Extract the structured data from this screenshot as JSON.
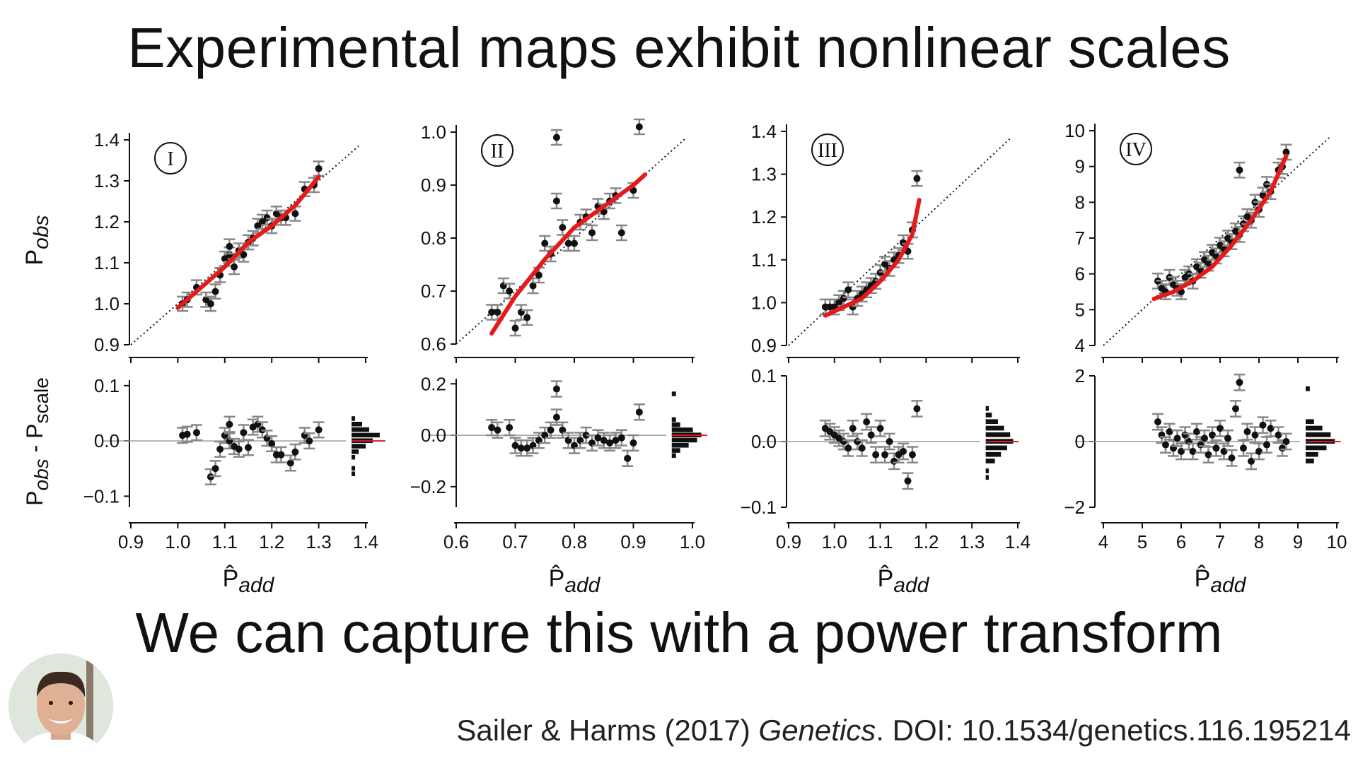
{
  "slide": {
    "title": "Experimental maps exhibit nonlinear scales",
    "subtitle": "We can capture this with a power transform",
    "citation_authors": "Sailer & Harms (2017) ",
    "citation_journal": "Genetics",
    "citation_rest": ". DOI: 10.1534/genetics.116.195214",
    "avatar_icon": "presenter-photo"
  },
  "colors": {
    "fit": "#e41a1c",
    "points": "#111111",
    "errorbar": "#888888",
    "zero_line": "#9a9a9a"
  },
  "chart_data": [
    {
      "type": "scatter",
      "panel_label": "I",
      "ylabel_top": "P_obs",
      "ylabel_bottom": "P_obs - P_scale",
      "xlabel": "P̂_add",
      "xlim": [
        0.9,
        1.4
      ],
      "xticks": [
        "0.9",
        "1.0",
        "1.1",
        "1.2",
        "1.3",
        "1.4"
      ],
      "top_ylim": [
        0.9,
        1.4
      ],
      "top_yticks": [
        "0.9",
        "1.0",
        "1.1",
        "1.2",
        "1.3",
        "1.4"
      ],
      "bottom_ylim": [
        -0.12,
        0.11
      ],
      "bottom_yticks": [
        "-0.1",
        "0.0",
        "0.1"
      ],
      "bottom_ytick_values": [
        -0.1,
        0.0,
        0.1
      ],
      "identity_line": true,
      "points": [
        [
          1.01,
          1.0
        ],
        [
          1.02,
          1.01
        ],
        [
          1.04,
          1.04
        ],
        [
          1.06,
          1.01
        ],
        [
          1.07,
          1.0
        ],
        [
          1.08,
          1.03
        ],
        [
          1.09,
          1.07
        ],
        [
          1.1,
          1.11
        ],
        [
          1.11,
          1.12
        ],
        [
          1.11,
          1.14
        ],
        [
          1.12,
          1.09
        ],
        [
          1.13,
          1.13
        ],
        [
          1.14,
          1.12
        ],
        [
          1.15,
          1.15
        ],
        [
          1.16,
          1.16
        ],
        [
          1.17,
          1.19
        ],
        [
          1.18,
          1.2
        ],
        [
          1.19,
          1.21
        ],
        [
          1.2,
          1.19
        ],
        [
          1.21,
          1.22
        ],
        [
          1.22,
          1.21
        ],
        [
          1.23,
          1.21
        ],
        [
          1.25,
          1.22
        ],
        [
          1.27,
          1.28
        ],
        [
          1.29,
          1.29
        ],
        [
          1.3,
          1.33
        ]
      ],
      "fit": [
        [
          1.0,
          0.99
        ],
        [
          1.05,
          1.04
        ],
        [
          1.1,
          1.09
        ],
        [
          1.15,
          1.15
        ],
        [
          1.2,
          1.19
        ],
        [
          1.25,
          1.24
        ],
        [
          1.3,
          1.31
        ]
      ],
      "residuals": [
        [
          1.01,
          0.01
        ],
        [
          1.02,
          0.012
        ],
        [
          1.04,
          0.015
        ],
        [
          1.07,
          -0.065
        ],
        [
          1.08,
          -0.05
        ],
        [
          1.09,
          -0.015
        ],
        [
          1.1,
          0.01
        ],
        [
          1.11,
          0.03
        ],
        [
          1.11,
          0.0
        ],
        [
          1.12,
          -0.01
        ],
        [
          1.13,
          -0.015
        ],
        [
          1.14,
          0.015
        ],
        [
          1.15,
          -0.012
        ],
        [
          1.16,
          0.025
        ],
        [
          1.17,
          0.03
        ],
        [
          1.18,
          0.02
        ],
        [
          1.19,
          0.005
        ],
        [
          1.2,
          -0.005
        ],
        [
          1.21,
          -0.025
        ],
        [
          1.22,
          -0.025
        ],
        [
          1.24,
          -0.04
        ],
        [
          1.25,
          -0.02
        ],
        [
          1.27,
          0.01
        ],
        [
          1.28,
          0.0
        ],
        [
          1.3,
          0.02
        ]
      ],
      "histogram": [
        [
          -0.06,
          1
        ],
        [
          -0.05,
          1
        ],
        [
          -0.03,
          1
        ],
        [
          -0.02,
          2
        ],
        [
          -0.01,
          4
        ],
        [
          0.0,
          6
        ],
        [
          0.01,
          8
        ],
        [
          0.02,
          5
        ],
        [
          0.03,
          3
        ],
        [
          0.04,
          1
        ]
      ],
      "hist_position_x": 1.37,
      "hist_width": 0.06
    },
    {
      "type": "scatter",
      "panel_label": "II",
      "xlabel": "P̂_add",
      "xlim": [
        0.6,
        1.0
      ],
      "xticks": [
        "0.6",
        "0.7",
        "0.8",
        "0.9",
        "1.0"
      ],
      "top_ylim": [
        0.6,
        1.0
      ],
      "top_yticks": [
        "0.6",
        "0.7",
        "0.8",
        "0.9",
        "1.0"
      ],
      "bottom_ylim": [
        -0.28,
        0.22
      ],
      "bottom_yticks": [
        "-0.2",
        "0.0",
        "0.2"
      ],
      "bottom_ytick_values": [
        -0.2,
        0.0,
        0.2
      ],
      "identity_line": true,
      "points": [
        [
          0.66,
          0.66
        ],
        [
          0.67,
          0.66
        ],
        [
          0.68,
          0.71
        ],
        [
          0.69,
          0.7
        ],
        [
          0.7,
          0.63
        ],
        [
          0.71,
          0.66
        ],
        [
          0.72,
          0.65
        ],
        [
          0.73,
          0.71
        ],
        [
          0.74,
          0.73
        ],
        [
          0.75,
          0.79
        ],
        [
          0.76,
          0.77
        ],
        [
          0.77,
          0.99
        ],
        [
          0.77,
          0.87
        ],
        [
          0.78,
          0.82
        ],
        [
          0.79,
          0.79
        ],
        [
          0.8,
          0.79
        ],
        [
          0.81,
          0.83
        ],
        [
          0.82,
          0.84
        ],
        [
          0.83,
          0.81
        ],
        [
          0.84,
          0.86
        ],
        [
          0.85,
          0.85
        ],
        [
          0.86,
          0.87
        ],
        [
          0.87,
          0.88
        ],
        [
          0.88,
          0.81
        ],
        [
          0.9,
          0.89
        ],
        [
          0.91,
          1.01
        ]
      ],
      "fit": [
        [
          0.66,
          0.62
        ],
        [
          0.7,
          0.69
        ],
        [
          0.75,
          0.76
        ],
        [
          0.8,
          0.82
        ],
        [
          0.85,
          0.86
        ],
        [
          0.9,
          0.9
        ],
        [
          0.92,
          0.92
        ]
      ],
      "residuals": [
        [
          0.66,
          0.03
        ],
        [
          0.67,
          0.02
        ],
        [
          0.69,
          0.03
        ],
        [
          0.7,
          -0.04
        ],
        [
          0.71,
          -0.05
        ],
        [
          0.72,
          -0.05
        ],
        [
          0.73,
          -0.04
        ],
        [
          0.74,
          -0.02
        ],
        [
          0.75,
          0.0
        ],
        [
          0.76,
          0.02
        ],
        [
          0.77,
          0.18
        ],
        [
          0.77,
          0.07
        ],
        [
          0.78,
          0.02
        ],
        [
          0.79,
          -0.02
        ],
        [
          0.8,
          -0.04
        ],
        [
          0.81,
          -0.02
        ],
        [
          0.82,
          0.0
        ],
        [
          0.83,
          -0.03
        ],
        [
          0.84,
          -0.01
        ],
        [
          0.85,
          -0.02
        ],
        [
          0.86,
          -0.03
        ],
        [
          0.87,
          -0.02
        ],
        [
          0.88,
          -0.01
        ],
        [
          0.89,
          -0.09
        ],
        [
          0.9,
          -0.03
        ],
        [
          0.91,
          0.09
        ]
      ],
      "histogram": [
        [
          -0.08,
          1
        ],
        [
          -0.06,
          2
        ],
        [
          -0.04,
          4
        ],
        [
          -0.02,
          6
        ],
        [
          0.0,
          7
        ],
        [
          0.02,
          5
        ],
        [
          0.04,
          2
        ],
        [
          0.06,
          1
        ],
        [
          0.16,
          1
        ]
      ],
      "hist_position_x": 0.965,
      "hist_width": 0.05
    },
    {
      "type": "scatter",
      "panel_label": "III",
      "xlabel": "P̂_add",
      "xlim": [
        0.9,
        1.4
      ],
      "xticks": [
        "0.9",
        "1.0",
        "1.1",
        "1.2",
        "1.3",
        "1.4"
      ],
      "top_ylim": [
        0.9,
        1.4
      ],
      "top_yticks": [
        "0.9",
        "1.0",
        "1.1",
        "1.2",
        "1.3",
        "1.4"
      ],
      "bottom_ylim": [
        -0.1,
        0.1
      ],
      "bottom_yticks": [
        "-0.1",
        "0.0",
        "0.1"
      ],
      "bottom_ytick_values": [
        -0.1,
        0.0,
        0.1
      ],
      "identity_line": true,
      "points": [
        [
          0.98,
          0.99
        ],
        [
          0.99,
          0.99
        ],
        [
          1.0,
          0.99
        ],
        [
          1.01,
          1.0
        ],
        [
          1.02,
          1.01
        ],
        [
          1.03,
          1.03
        ],
        [
          1.04,
          0.99
        ],
        [
          1.05,
          1.01
        ],
        [
          1.06,
          1.02
        ],
        [
          1.07,
          1.03
        ],
        [
          1.08,
          1.04
        ],
        [
          1.09,
          1.05
        ],
        [
          1.1,
          1.07
        ],
        [
          1.11,
          1.09
        ],
        [
          1.12,
          1.08
        ],
        [
          1.13,
          1.1
        ],
        [
          1.14,
          1.11
        ],
        [
          1.15,
          1.14
        ],
        [
          1.16,
          1.12
        ],
        [
          1.17,
          1.17
        ],
        [
          1.18,
          1.29
        ]
      ],
      "fit": [
        [
          0.98,
          0.97
        ],
        [
          1.02,
          0.99
        ],
        [
          1.06,
          1.01
        ],
        [
          1.1,
          1.05
        ],
        [
          1.14,
          1.1
        ],
        [
          1.17,
          1.16
        ],
        [
          1.185,
          1.24
        ]
      ],
      "residuals": [
        [
          0.98,
          0.02
        ],
        [
          0.99,
          0.015
        ],
        [
          1.0,
          0.01
        ],
        [
          1.01,
          0.005
        ],
        [
          1.02,
          0.0
        ],
        [
          1.03,
          -0.01
        ],
        [
          1.04,
          0.02
        ],
        [
          1.05,
          0.0
        ],
        [
          1.06,
          -0.01
        ],
        [
          1.07,
          0.03
        ],
        [
          1.08,
          0.01
        ],
        [
          1.09,
          -0.02
        ],
        [
          1.1,
          0.02
        ],
        [
          1.11,
          -0.02
        ],
        [
          1.12,
          0.0
        ],
        [
          1.13,
          -0.03
        ],
        [
          1.14,
          -0.02
        ],
        [
          1.15,
          -0.015
        ],
        [
          1.16,
          -0.06
        ],
        [
          1.17,
          -0.02
        ],
        [
          1.18,
          0.05
        ]
      ],
      "histogram": [
        [
          -0.055,
          1
        ],
        [
          -0.045,
          1
        ],
        [
          -0.03,
          3
        ],
        [
          -0.02,
          5
        ],
        [
          -0.01,
          7
        ],
        [
          0.0,
          9
        ],
        [
          0.01,
          8
        ],
        [
          0.02,
          6
        ],
        [
          0.03,
          4
        ],
        [
          0.04,
          2
        ],
        [
          0.05,
          1
        ]
      ],
      "hist_position_x": 1.33,
      "hist_width": 0.06
    },
    {
      "type": "scatter",
      "panel_label": "IV",
      "xlabel": "P̂_add",
      "xlim": [
        4,
        10
      ],
      "xticks": [
        "4",
        "5",
        "6",
        "7",
        "8",
        "9",
        "10"
      ],
      "top_ylim": [
        4,
        10
      ],
      "top_yticks": [
        "4",
        "5",
        "6",
        "7",
        "8",
        "9",
        "10"
      ],
      "bottom_ylim": [
        -2,
        2
      ],
      "bottom_yticks": [
        "-2",
        "0",
        "2"
      ],
      "bottom_ytick_values": [
        -2,
        0,
        2
      ],
      "identity_line": true,
      "points": [
        [
          5.4,
          5.8
        ],
        [
          5.5,
          5.6
        ],
        [
          5.6,
          5.5
        ],
        [
          5.7,
          5.9
        ],
        [
          5.8,
          5.7
        ],
        [
          5.9,
          5.6
        ],
        [
          6.0,
          5.5
        ],
        [
          6.1,
          5.9
        ],
        [
          6.2,
          6.0
        ],
        [
          6.3,
          5.8
        ],
        [
          6.4,
          6.2
        ],
        [
          6.5,
          6.1
        ],
        [
          6.6,
          6.4
        ],
        [
          6.7,
          6.3
        ],
        [
          6.8,
          6.6
        ],
        [
          6.9,
          6.5
        ],
        [
          7.0,
          6.8
        ],
        [
          7.1,
          6.7
        ],
        [
          7.2,
          7.0
        ],
        [
          7.3,
          6.9
        ],
        [
          7.4,
          7.2
        ],
        [
          7.5,
          8.9
        ],
        [
          7.5,
          7.1
        ],
        [
          7.6,
          7.4
        ],
        [
          7.7,
          7.6
        ],
        [
          7.8,
          7.5
        ],
        [
          7.9,
          8.0
        ],
        [
          8.0,
          7.8
        ],
        [
          8.1,
          8.2
        ],
        [
          8.2,
          8.5
        ],
        [
          8.3,
          8.3
        ],
        [
          8.5,
          8.9
        ],
        [
          8.6,
          9.0
        ],
        [
          8.7,
          9.4
        ]
      ],
      "fit": [
        [
          5.3,
          5.3
        ],
        [
          5.8,
          5.5
        ],
        [
          6.3,
          5.8
        ],
        [
          6.8,
          6.2
        ],
        [
          7.3,
          6.8
        ],
        [
          7.8,
          7.5
        ],
        [
          8.3,
          8.3
        ],
        [
          8.7,
          9.3
        ]
      ],
      "residuals": [
        [
          5.4,
          0.6
        ],
        [
          5.5,
          0.2
        ],
        [
          5.6,
          -0.1
        ],
        [
          5.7,
          0.3
        ],
        [
          5.8,
          -0.2
        ],
        [
          5.9,
          0.1
        ],
        [
          6.0,
          -0.3
        ],
        [
          6.1,
          0.2
        ],
        [
          6.2,
          0.0
        ],
        [
          6.3,
          -0.3
        ],
        [
          6.4,
          0.3
        ],
        [
          6.5,
          -0.1
        ],
        [
          6.6,
          0.1
        ],
        [
          6.7,
          -0.4
        ],
        [
          6.8,
          0.2
        ],
        [
          6.9,
          -0.2
        ],
        [
          7.0,
          0.4
        ],
        [
          7.1,
          -0.3
        ],
        [
          7.2,
          0.1
        ],
        [
          7.3,
          -0.5
        ],
        [
          7.4,
          1.0
        ],
        [
          7.5,
          1.8
        ],
        [
          7.6,
          -0.2
        ],
        [
          7.7,
          0.3
        ],
        [
          7.8,
          -0.6
        ],
        [
          7.9,
          0.2
        ],
        [
          8.0,
          -0.3
        ],
        [
          8.1,
          0.5
        ],
        [
          8.2,
          -0.1
        ],
        [
          8.3,
          0.4
        ],
        [
          8.5,
          0.2
        ],
        [
          8.6,
          -0.2
        ],
        [
          8.7,
          0.0
        ]
      ],
      "histogram": [
        [
          -0.6,
          2
        ],
        [
          -0.4,
          3
        ],
        [
          -0.2,
          5
        ],
        [
          0.0,
          7
        ],
        [
          0.2,
          6
        ],
        [
          0.4,
          4
        ],
        [
          0.6,
          2
        ],
        [
          1.6,
          1
        ]
      ],
      "hist_position_x": 9.2,
      "hist_width": 0.75
    }
  ]
}
